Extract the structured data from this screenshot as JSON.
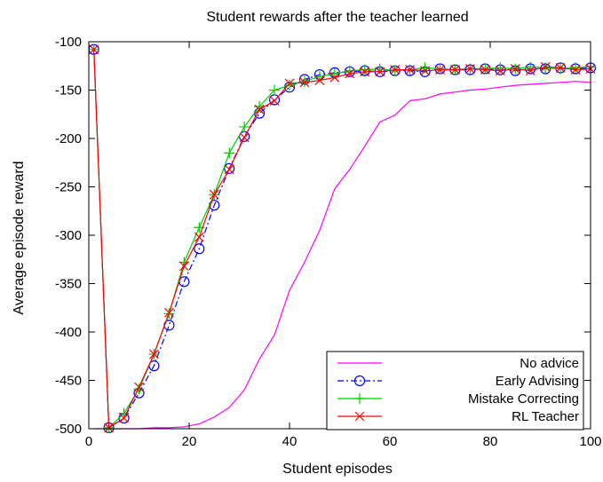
{
  "chart_data": {
    "type": "line",
    "title": "Student rewards after the teacher learned",
    "xlabel": "Student episodes",
    "ylabel": "Average episode reward",
    "xlim": [
      0,
      100
    ],
    "ylim": [
      -500,
      -100
    ],
    "xticks": [
      0,
      20,
      40,
      60,
      80,
      100
    ],
    "yticks": [
      -500,
      -450,
      -400,
      -350,
      -300,
      -250,
      -200,
      -150,
      -100
    ],
    "xtick_labels": [
      "0",
      "20",
      "40",
      "60",
      "80",
      "100"
    ],
    "ytick_labels": [
      "-500",
      "-450",
      "-400",
      "-350",
      "-300",
      "-250",
      "-200",
      "-150",
      "-100"
    ],
    "grid": false,
    "legend_position": "bottom-right",
    "series": [
      {
        "name": "No advice",
        "color": "#ff00ff",
        "dash": "solid",
        "marker": "none",
        "x": [
          1,
          4,
          7,
          10,
          13,
          16,
          19,
          22,
          25,
          28,
          31,
          34,
          37,
          40,
          43,
          46,
          49,
          52,
          55,
          58,
          61,
          64,
          67,
          70,
          73,
          76,
          79,
          82,
          85,
          88,
          91,
          94,
          97,
          100
        ],
        "y": [
          -500,
          -500,
          -500,
          -500,
          -499,
          -499,
          -498,
          -495,
          -488,
          -478,
          -460,
          -428,
          -403,
          -357,
          -328,
          -295,
          -252,
          -232,
          -208,
          -183,
          -176,
          -161,
          -159,
          -154,
          -152,
          -150,
          -149,
          -147,
          -145,
          -144,
          -143,
          -142,
          -141,
          -142
        ]
      },
      {
        "name": "Early Advising",
        "color": "#0000ff",
        "dash": "dashdot",
        "marker": "circle",
        "x": [
          1,
          4,
          7,
          10,
          13,
          16,
          19,
          22,
          25,
          28,
          31,
          34,
          37,
          40,
          43,
          46,
          49,
          52,
          55,
          58,
          61,
          64,
          67,
          70,
          73,
          76,
          79,
          82,
          85,
          88,
          91,
          94,
          97,
          100
        ],
        "y": [
          -108,
          -499,
          -489,
          -463,
          -435,
          -393,
          -348,
          -314,
          -269,
          -231,
          -198,
          -174,
          -160,
          -147,
          -139,
          -134,
          -132,
          -131,
          -130,
          -131,
          -130,
          -130,
          -131,
          -128,
          -129,
          -129,
          -128,
          -129,
          -130,
          -128,
          -128,
          -127,
          -128,
          -127
        ]
      },
      {
        "name": "Mistake Correcting",
        "color": "#00cc00",
        "dash": "solid",
        "marker": "plus",
        "x": [
          1,
          4,
          7,
          10,
          13,
          16,
          19,
          22,
          25,
          28,
          31,
          34,
          37,
          40,
          43,
          46,
          49,
          52,
          55,
          58,
          61,
          64,
          67,
          70,
          73,
          76,
          79,
          82,
          85,
          88,
          91,
          94,
          97,
          100
        ],
        "y": [
          -108,
          -499,
          -484,
          -459,
          -423,
          -381,
          -328,
          -292,
          -258,
          -215,
          -188,
          -167,
          -150,
          -145,
          -141,
          -136,
          -133,
          -130,
          -129,
          -128,
          -130,
          -129,
          -127,
          -128,
          -129,
          -128,
          -128,
          -127,
          -128,
          -126,
          -127,
          -128,
          -127,
          -126
        ]
      },
      {
        "name": "RL Teacher",
        "color": "#ff0000",
        "dash": "solid",
        "marker": "cross",
        "x": [
          1,
          4,
          7,
          10,
          13,
          16,
          19,
          22,
          25,
          28,
          31,
          34,
          37,
          40,
          43,
          46,
          49,
          52,
          55,
          58,
          61,
          64,
          67,
          70,
          73,
          76,
          79,
          82,
          85,
          88,
          91,
          94,
          97,
          100
        ],
        "y": [
          -108,
          -499,
          -489,
          -457,
          -423,
          -380,
          -332,
          -302,
          -258,
          -232,
          -199,
          -170,
          -161,
          -143,
          -142,
          -140,
          -137,
          -133,
          -131,
          -131,
          -129,
          -129,
          -130,
          -129,
          -129,
          -128,
          -129,
          -130,
          -128,
          -130,
          -126,
          -127,
          -129,
          -128
        ]
      }
    ]
  }
}
